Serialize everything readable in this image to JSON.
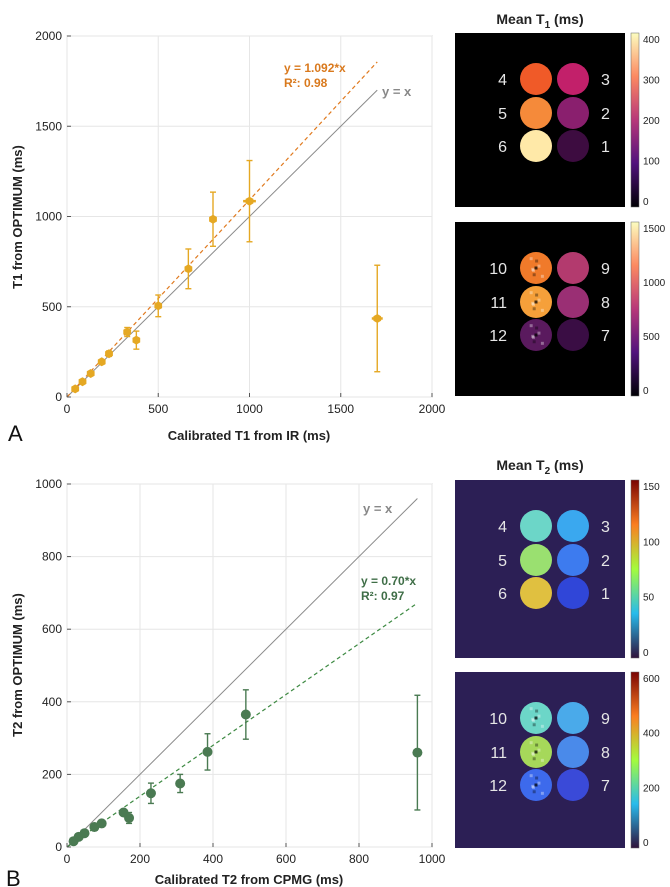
{
  "chart_data": [
    {
      "panel": "A",
      "type": "scatter",
      "xlabel": "Calibrated T1 from IR (ms)",
      "ylabel": "T1 from OPTIMUM (ms)",
      "xlim": [
        0,
        2000
      ],
      "ylim": [
        0,
        2000
      ],
      "xticks": [
        0,
        500,
        1000,
        1500,
        2000
      ],
      "yticks": [
        0,
        500,
        1000,
        1500,
        2000
      ],
      "grid": true,
      "color": "#e5a823",
      "identity_label": "y = x",
      "fit_slope": 1.092,
      "fit_label": "y = 1.092*x",
      "r2_label": "R²: 0.98",
      "points": [
        {
          "x": 45,
          "y": 45,
          "err": 8,
          "xerr": 10
        },
        {
          "x": 85,
          "y": 85,
          "err": 8,
          "xerr": 10
        },
        {
          "x": 130,
          "y": 130,
          "err": 10,
          "xerr": 10
        },
        {
          "x": 190,
          "y": 195,
          "err": 12,
          "xerr": 12
        },
        {
          "x": 230,
          "y": 240,
          "err": 15,
          "xerr": 15
        },
        {
          "x": 330,
          "y": 360,
          "err": 25,
          "xerr": 20
        },
        {
          "x": 380,
          "y": 315,
          "err": 50,
          "xerr": 15
        },
        {
          "x": 500,
          "y": 505,
          "err": 60,
          "xerr": 20
        },
        {
          "x": 665,
          "y": 710,
          "err": 110,
          "xerr": 20
        },
        {
          "x": 800,
          "y": 985,
          "err": 150,
          "xerr": 15
        },
        {
          "x": 1000,
          "y": 1085,
          "err": 225,
          "xerr": 35
        },
        {
          "x": 1700,
          "y": 435,
          "err": 295,
          "xerr": 30
        }
      ]
    },
    {
      "panel": "B",
      "type": "scatter",
      "xlabel": "Calibrated T2 from CPMG (ms)",
      "ylabel": "T2 from OPTIMUM (ms)",
      "xlim": [
        0,
        1000
      ],
      "ylim": [
        0,
        1000
      ],
      "xticks": [
        0,
        200,
        400,
        600,
        800,
        1000
      ],
      "yticks": [
        0,
        200,
        400,
        600,
        800,
        1000
      ],
      "grid": true,
      "color": "#4a7a52",
      "identity_label": "y = x",
      "fit_slope": 0.7,
      "fit_label": "y = 0.70*x",
      "r2_label": "R²: 0.97",
      "points": [
        {
          "x": 18,
          "y": 16,
          "err": 3
        },
        {
          "x": 32,
          "y": 28,
          "err": 4
        },
        {
          "x": 48,
          "y": 38,
          "err": 5
        },
        {
          "x": 75,
          "y": 55,
          "err": 6
        },
        {
          "x": 95,
          "y": 65,
          "err": 7
        },
        {
          "x": 155,
          "y": 95,
          "err": 8
        },
        {
          "x": 170,
          "y": 80,
          "err": 15
        },
        {
          "x": 230,
          "y": 148,
          "err": 28
        },
        {
          "x": 310,
          "y": 175,
          "err": 25
        },
        {
          "x": 385,
          "y": 262,
          "err": 50
        },
        {
          "x": 490,
          "y": 365,
          "err": 68
        },
        {
          "x": 960,
          "y": 260,
          "err": 158
        }
      ]
    }
  ],
  "panels": {
    "a_letter": "A",
    "b_letter": "B"
  },
  "maps": {
    "t1_title": "Mean T",
    "t1_sub": "1",
    "t1_unit": " (ms)",
    "t2_title": "Mean T",
    "t2_sub": "2",
    "t2_unit": " (ms)",
    "t1_top": {
      "labels": [
        "4",
        "3",
        "5",
        "2",
        "6",
        "1"
      ],
      "colorbar_ticks": [
        "400",
        "300",
        "200",
        "100",
        "0"
      ],
      "colors": [
        "#f05a28",
        "#c2206a",
        "#f58a3a",
        "#8a1f6e",
        "#ffe9a8",
        "#3d0c40"
      ],
      "colormap": [
        "#fcfdbf",
        "#fc8961",
        "#b73779",
        "#51127c",
        "#000004"
      ]
    },
    "t1_bottom": {
      "labels": [
        "10",
        "9",
        "11",
        "8",
        "12",
        "7"
      ],
      "colorbar_ticks": [
        "1500",
        "1000",
        "500",
        "0"
      ],
      "colors": [
        "#f07a2a",
        "#b33a6e",
        "#f5a03a",
        "#9a2f74",
        "#5a1a5e",
        "#3a0d44"
      ],
      "colormap": [
        "#fcfdbf",
        "#fc8961",
        "#b73779",
        "#51127c",
        "#000004"
      ]
    },
    "t2_top": {
      "labels": [
        "4",
        "3",
        "5",
        "2",
        "6",
        "1"
      ],
      "colorbar_ticks": [
        "150",
        "100",
        "50",
        "0"
      ],
      "colors": [
        "#6cd6c8",
        "#3aa8ef",
        "#9ae070",
        "#3d7bef",
        "#e0c040",
        "#3046d8"
      ],
      "colormap": [
        "#7a0403",
        "#fb7e21",
        "#a4fc3c",
        "#28bbec",
        "#30123b"
      ]
    },
    "t2_bottom": {
      "labels": [
        "10",
        "9",
        "11",
        "8",
        "12",
        "7"
      ],
      "colorbar_ticks": [
        "600",
        "400",
        "200",
        "0"
      ],
      "colors": [
        "#6cd6c8",
        "#4aaaea",
        "#a6d85a",
        "#4a8aea",
        "#3d6aec",
        "#3a4ad8"
      ],
      "colormap": [
        "#7a0403",
        "#fb7e21",
        "#a4fc3c",
        "#28bbec",
        "#30123b"
      ]
    }
  }
}
